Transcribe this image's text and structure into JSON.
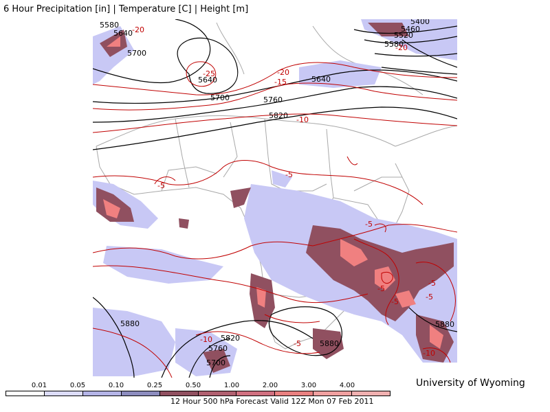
{
  "title": "6 Hour Precipitation [in] | Temperature [C] | Height [m]",
  "footer": "12 Hour 500 hPa Forecast Valid 12Z Mon 07 Feb 2011",
  "credit": "University of Wyoming",
  "colors": {
    "height_contour": "#000000",
    "temperature_contour": "#c00000",
    "boundaries": "#a8a8a8",
    "precip_light": "#c8c8f5",
    "precip_moderate": "#8484b4",
    "precip_heavy": "#905060",
    "precip_very_heavy": "#f08080"
  },
  "precip_scale": {
    "ticks": [
      "0.01",
      "0.05",
      "0.10",
      "0.25",
      "0.50",
      "1.00",
      "2.00",
      "3.00",
      "4.00"
    ],
    "colors": [
      "#ffffff",
      "#dcdcfa",
      "#b4b4e6",
      "#8c8cbe",
      "#905060",
      "#b06070",
      "#d07080",
      "#e88080",
      "#f0a0a0",
      "#f0b0b0"
    ]
  },
  "map": {
    "height_labels": [
      "5580",
      "5640",
      "5700",
      "5640",
      "5700",
      "5760",
      "5820",
      "5640",
      "5400",
      "5460",
      "5520",
      "5580",
      "5880",
      "5820",
      "5760",
      "5700",
      "5880",
      "5880"
    ],
    "temperature_labels": [
      "-20",
      "-25",
      "-20",
      "-15",
      "-10",
      "-5",
      "-5",
      "-5",
      "-20",
      "-10",
      "-5",
      "-5",
      "-5",
      "-5",
      "-10",
      "-5"
    ]
  }
}
